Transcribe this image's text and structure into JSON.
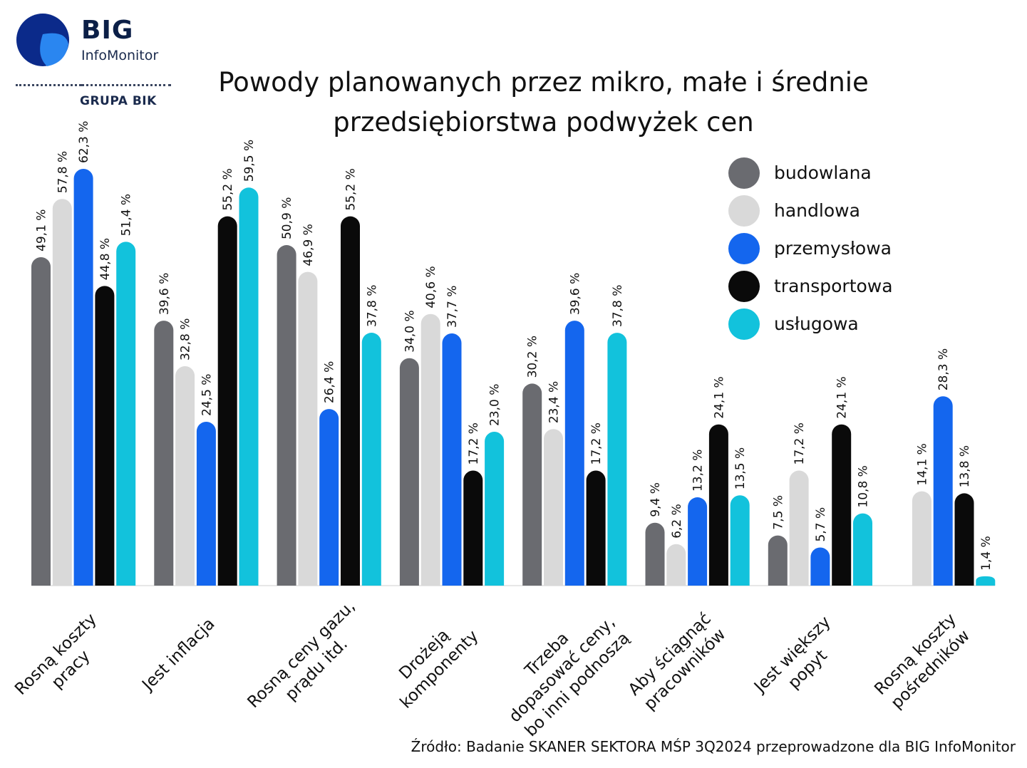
{
  "logo": {
    "brand": "BIG",
    "sub": "InfoMonitor",
    "group": "GRUPA BIK"
  },
  "title_line1": "Powody planowanych przez mikro, małe i średnie",
  "title_line2": "przedsiębiorstwa podwyżek cen",
  "source": "Źródło: Badanie SKANER SEKTORA MŚP 3Q2024 przeprowadzone dla BIG InfoMonitor",
  "colors": {
    "budowlana": "#6a6b70",
    "handlowa": "#d9d9d9",
    "przemyslowa": "#1466ee",
    "transportowa": "#0a0a0a",
    "uslugowa": "#12c2dc",
    "logo_dark": "#0b2a8a",
    "logo_light": "#2a86f0"
  },
  "chart_data": {
    "type": "bar",
    "title": "Powody planowanych przez mikro, małe i średnie przedsiębiorstwa podwyżek cen",
    "categories": [
      [
        "Rosną koszty",
        "pracy"
      ],
      [
        "Jest inflacja"
      ],
      [
        "Rosną ceny gazu,",
        "prądu itd."
      ],
      [
        "Drożeją",
        "komponenty"
      ],
      [
        "Trzeba",
        "dopasować ceny,",
        "bo inni podnoszą"
      ],
      [
        "Aby ściągnąć",
        "pracowników"
      ],
      [
        "Jest większy",
        "popyt"
      ],
      [
        "Rosną koszty",
        "pośredników"
      ]
    ],
    "series": [
      {
        "name": "budowlana",
        "color_key": "budowlana",
        "values": [
          49.1,
          39.6,
          50.9,
          34.0,
          30.2,
          9.4,
          7.5,
          null
        ],
        "labels": [
          "49,1 %",
          "39,6 %",
          "50,9 %",
          "34,0 %",
          "30,2 %",
          "9,4 %",
          "7,5 %",
          null
        ]
      },
      {
        "name": "handlowa",
        "color_key": "handlowa",
        "values": [
          57.8,
          32.8,
          46.9,
          40.6,
          23.4,
          6.2,
          17.2,
          14.1
        ],
        "labels": [
          "57,8 %",
          "32,8 %",
          "46,9 %",
          "40,6 %",
          "23,4 %",
          "6,2 %",
          "17,2 %",
          "14,1 %"
        ]
      },
      {
        "name": "przemysłowa",
        "color_key": "przemyslowa",
        "values": [
          62.3,
          24.5,
          26.4,
          37.7,
          39.6,
          13.2,
          5.7,
          28.3
        ],
        "labels": [
          "62,3 %",
          "24,5 %",
          "26,4 %",
          "37,7 %",
          "39,6 %",
          "13,2 %",
          "5,7 %",
          "28,3 %"
        ]
      },
      {
        "name": "transportowa",
        "color_key": "transportowa",
        "values": [
          44.8,
          55.2,
          55.2,
          17.2,
          17.2,
          24.1,
          24.1,
          13.8
        ],
        "labels": [
          "44,8 %",
          "55,2 %",
          "55,2 %",
          "17,2 %",
          "17,2 %",
          "24,1 %",
          "24,1 %",
          "13,8 %"
        ]
      },
      {
        "name": "usługowa",
        "color_key": "uslugowa",
        "values": [
          51.4,
          59.5,
          37.8,
          23.0,
          37.8,
          13.5,
          10.8,
          1.4
        ],
        "labels": [
          "51,4 %",
          "59,5 %",
          "37,8 %",
          "23,0 %",
          "37,8 %",
          "13,5 %",
          "10,8 %",
          "1,4 %"
        ]
      }
    ],
    "ylim": [
      0,
      62.3
    ],
    "grid": false,
    "legend_placement": "top-right"
  }
}
